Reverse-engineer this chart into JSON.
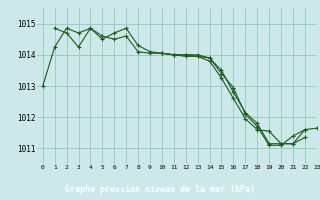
{
  "title": "Graphe pression niveau de la mer (hPa)",
  "background_color": "#cce8e8",
  "xlabel_bg": "#4a9a6a",
  "grid_color": "#99cccc",
  "line_color": "#1a5c1a",
  "xlim": [
    -0.5,
    23
  ],
  "ylim": [
    1010.5,
    1015.5
  ],
  "yticks": [
    1011,
    1012,
    1013,
    1014,
    1015
  ],
  "xticks": [
    0,
    1,
    2,
    3,
    4,
    5,
    6,
    7,
    8,
    9,
    10,
    11,
    12,
    13,
    14,
    15,
    16,
    17,
    18,
    19,
    20,
    21,
    22,
    23
  ],
  "line1_x": [
    0,
    1,
    2,
    3,
    4,
    5,
    6,
    7,
    8,
    9,
    10,
    11,
    12,
    13,
    14,
    15,
    16,
    17,
    18,
    19,
    20,
    21,
    22
  ],
  "line1_y": [
    1013.0,
    1014.25,
    1014.85,
    1014.7,
    1014.85,
    1014.6,
    1014.5,
    1014.6,
    1014.1,
    1014.05,
    1014.05,
    1014.0,
    1014.0,
    1013.95,
    1013.9,
    1013.5,
    1012.8,
    1012.15,
    1011.8,
    1011.15,
    1011.15,
    1011.15,
    1011.35
  ],
  "line2_x": [
    1,
    2,
    3,
    4,
    5,
    6,
    7,
    8,
    9,
    10,
    11,
    12,
    13,
    14,
    15,
    16,
    17,
    18,
    19,
    20,
    21,
    22
  ],
  "line2_y": [
    1014.85,
    1014.7,
    1014.25,
    1014.85,
    1014.5,
    1014.7,
    1014.85,
    1014.3,
    1014.1,
    1014.05,
    1014.0,
    1014.0,
    1014.0,
    1013.9,
    1013.4,
    1012.95,
    1012.1,
    1011.7,
    1011.1,
    1011.1,
    1011.4,
    1011.6
  ],
  "line3_x": [
    10,
    11,
    12,
    13,
    14,
    15,
    16,
    17,
    18,
    19,
    20,
    21,
    22,
    23
  ],
  "line3_y": [
    1014.05,
    1014.0,
    1013.95,
    1013.95,
    1013.8,
    1013.25,
    1012.6,
    1011.95,
    1011.6,
    1011.55,
    1011.15,
    1011.15,
    1011.6,
    1011.65
  ]
}
